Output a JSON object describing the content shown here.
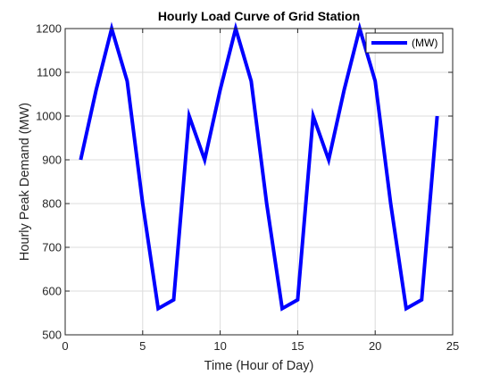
{
  "chart_data": {
    "type": "line",
    "title": "Hourly Load Curve of Grid Station",
    "xlabel": "Time (Hour of Day)",
    "ylabel": "Hourly Peak Demand (MW)",
    "xlim": [
      0,
      25
    ],
    "ylim": [
      500,
      1200
    ],
    "xticks": [
      0,
      5,
      10,
      15,
      20,
      25
    ],
    "yticks": [
      500,
      600,
      700,
      800,
      900,
      1000,
      1100,
      1200
    ],
    "grid": true,
    "legend_location": "top-right",
    "series": [
      {
        "name": "(MW)",
        "color": "#0000ff",
        "x": [
          1,
          2,
          3,
          4,
          5,
          6,
          7,
          8,
          9,
          10,
          11,
          12,
          13,
          14,
          15,
          16,
          17,
          18,
          19,
          20,
          21,
          22,
          23,
          24
        ],
        "y": [
          900,
          1060,
          1200,
          1080,
          800,
          560,
          580,
          1000,
          900,
          1060,
          1200,
          1080,
          800,
          560,
          580,
          1000,
          900,
          1060,
          1200,
          1080,
          800,
          560,
          580,
          1000
        ]
      }
    ]
  }
}
